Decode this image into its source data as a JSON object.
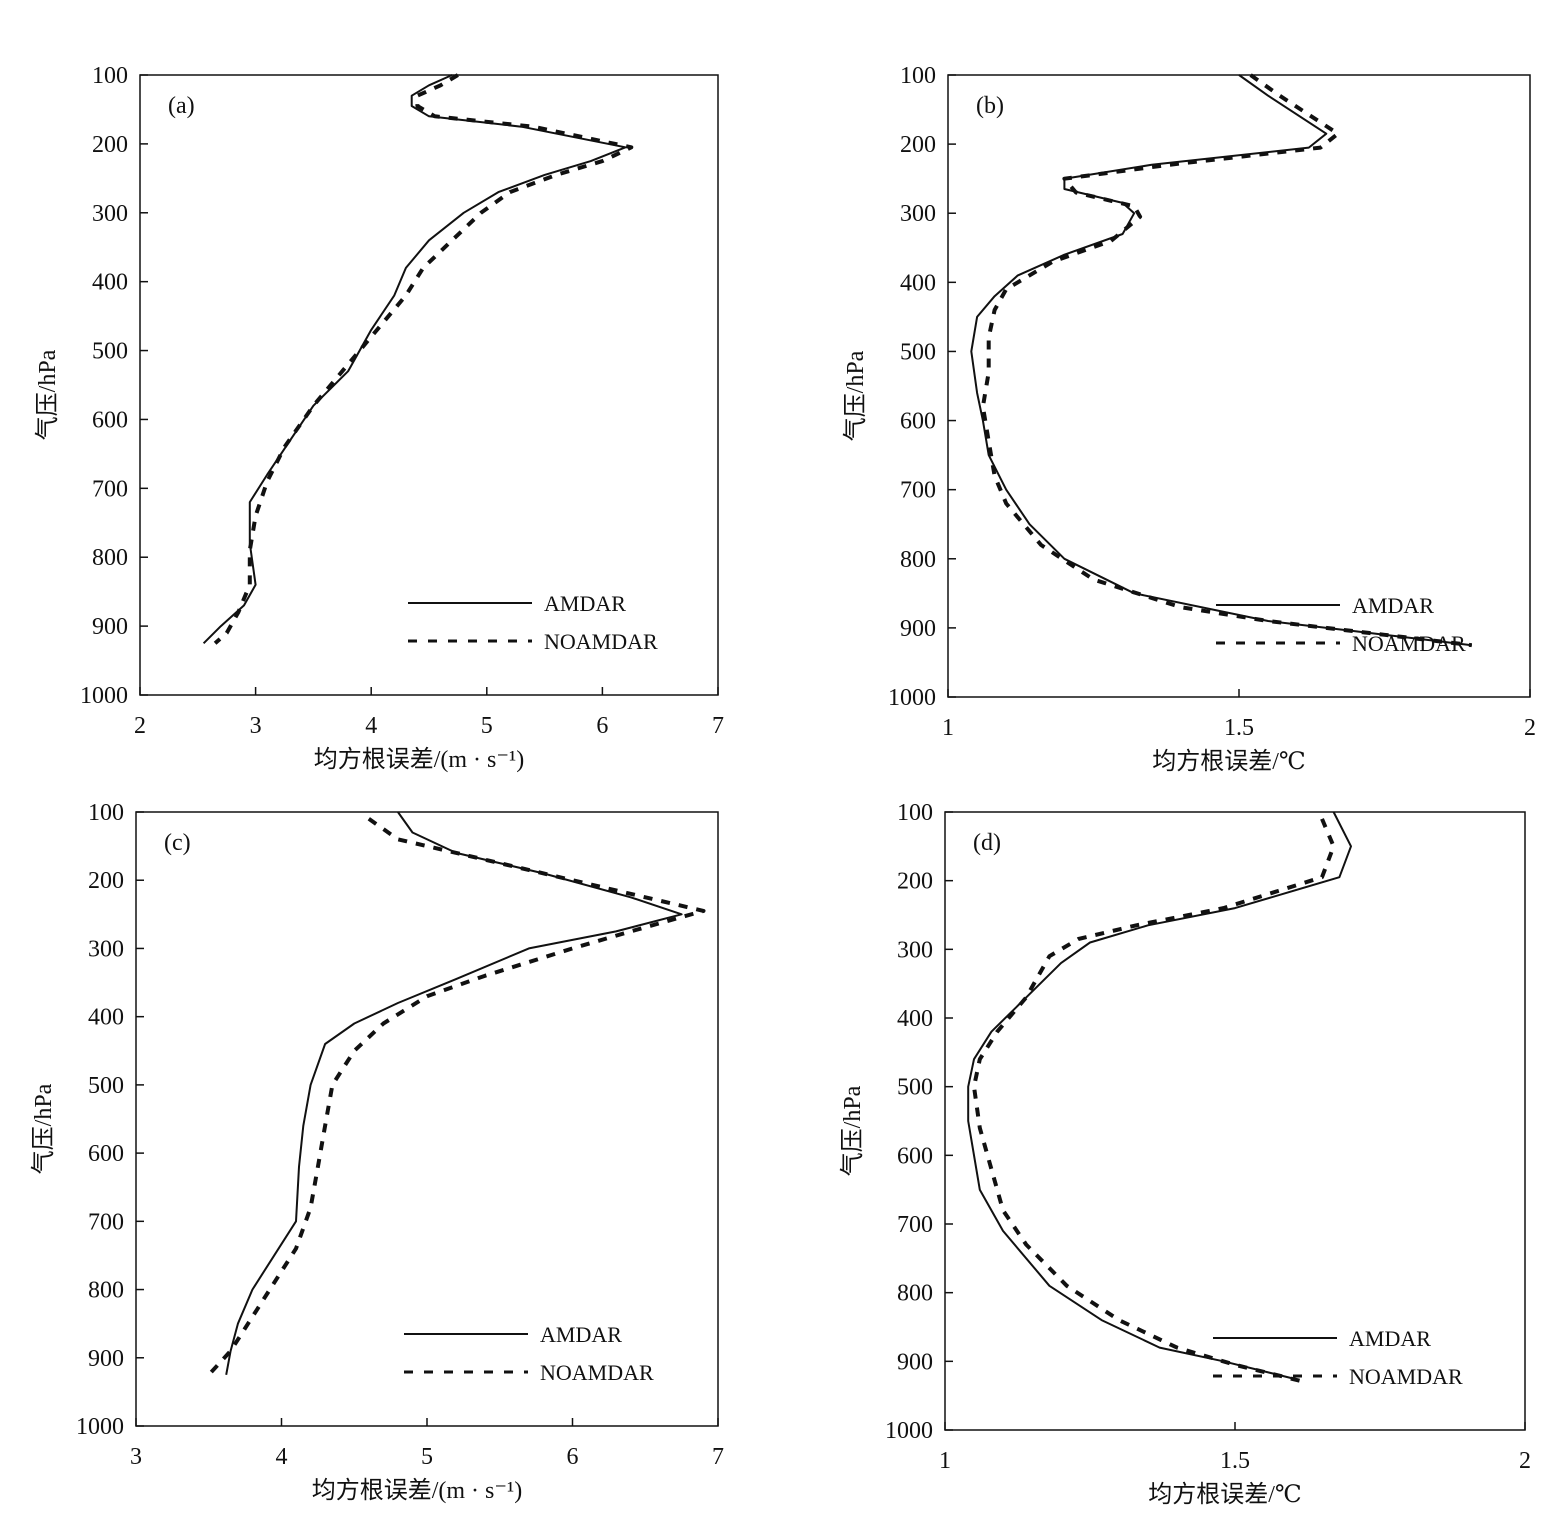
{
  "chart_data": [
    {
      "type": "line",
      "panel_label": "(a)",
      "xlabel": "均方根误差/(m · s⁻¹)",
      "ylabel": "气压/hPa",
      "xlim": [
        2,
        7
      ],
      "ylim": [
        1000,
        100
      ],
      "x_ticks": [
        "2",
        "3",
        "4",
        "5",
        "6",
        "7"
      ],
      "y_ticks": [
        "100",
        "200",
        "300",
        "400",
        "500",
        "600",
        "700",
        "800",
        "900",
        "1000"
      ],
      "legend": [
        "AMDAR",
        "NOAMDAR"
      ],
      "series": [
        {
          "name": "AMDAR",
          "style": "solid",
          "points": [
            [
              4.7,
              100
            ],
            [
              4.5,
              115
            ],
            [
              4.35,
              130
            ],
            [
              4.35,
              145
            ],
            [
              4.5,
              160
            ],
            [
              5.3,
              175
            ],
            [
              6.2,
              205
            ],
            [
              5.9,
              225
            ],
            [
              5.5,
              245
            ],
            [
              5.1,
              270
            ],
            [
              4.8,
              300
            ],
            [
              4.5,
              340
            ],
            [
              4.3,
              380
            ],
            [
              4.2,
              420
            ],
            [
              4.0,
              470
            ],
            [
              3.8,
              530
            ],
            [
              3.5,
              580
            ],
            [
              3.3,
              630
            ],
            [
              3.1,
              680
            ],
            [
              2.95,
              720
            ],
            [
              2.95,
              780
            ],
            [
              3.0,
              840
            ],
            [
              2.9,
              870
            ],
            [
              2.7,
              900
            ],
            [
              2.55,
              925
            ]
          ]
        },
        {
          "name": "NOAMDAR",
          "style": "dashed",
          "points": [
            [
              4.75,
              100
            ],
            [
              4.6,
              115
            ],
            [
              4.4,
              130
            ],
            [
              4.4,
              145
            ],
            [
              4.55,
              160
            ],
            [
              5.4,
              175
            ],
            [
              6.25,
              205
            ],
            [
              6.0,
              225
            ],
            [
              5.6,
              245
            ],
            [
              5.2,
              270
            ],
            [
              4.95,
              300
            ],
            [
              4.7,
              340
            ],
            [
              4.45,
              380
            ],
            [
              4.3,
              420
            ],
            [
              4.0,
              480
            ],
            [
              3.75,
              530
            ],
            [
              3.5,
              580
            ],
            [
              3.25,
              640
            ],
            [
              3.1,
              690
            ],
            [
              3.0,
              740
            ],
            [
              2.95,
              790
            ],
            [
              2.95,
              840
            ],
            [
              2.85,
              880
            ],
            [
              2.75,
              910
            ],
            [
              2.65,
              925
            ]
          ]
        }
      ]
    },
    {
      "type": "line",
      "panel_label": "(b)",
      "xlabel": "均方根误差/℃",
      "ylabel": "气压/hPa",
      "xlim": [
        1,
        2
      ],
      "ylim": [
        1000,
        100
      ],
      "x_ticks": [
        "1",
        "1.5",
        "2"
      ],
      "y_ticks": [
        "100",
        "200",
        "300",
        "400",
        "500",
        "600",
        "700",
        "800",
        "900",
        "1000"
      ],
      "legend": [
        "AMDAR",
        "NOAMDAR"
      ],
      "series": [
        {
          "name": "AMDAR",
          "style": "solid",
          "points": [
            [
              1.5,
              100
            ],
            [
              1.55,
              130
            ],
            [
              1.65,
              185
            ],
            [
              1.62,
              205
            ],
            [
              1.35,
              230
            ],
            [
              1.2,
              250
            ],
            [
              1.2,
              265
            ],
            [
              1.3,
              285
            ],
            [
              1.32,
              300
            ],
            [
              1.3,
              330
            ],
            [
              1.2,
              360
            ],
            [
              1.12,
              390
            ],
            [
              1.08,
              420
            ],
            [
              1.05,
              450
            ],
            [
              1.04,
              500
            ],
            [
              1.05,
              560
            ],
            [
              1.06,
              600
            ],
            [
              1.07,
              650
            ],
            [
              1.1,
              700
            ],
            [
              1.14,
              750
            ],
            [
              1.2,
              800
            ],
            [
              1.32,
              850
            ],
            [
              1.55,
              890
            ],
            [
              1.7,
              905
            ],
            [
              1.9,
              925
            ]
          ]
        },
        {
          "name": "NOAMDAR",
          "style": "dashed",
          "points": [
            [
              1.52,
              100
            ],
            [
              1.57,
              130
            ],
            [
              1.67,
              185
            ],
            [
              1.64,
              205
            ],
            [
              1.38,
              230
            ],
            [
              1.2,
              250
            ],
            [
              1.22,
              270
            ],
            [
              1.32,
              290
            ],
            [
              1.33,
              305
            ],
            [
              1.28,
              340
            ],
            [
              1.18,
              370
            ],
            [
              1.1,
              410
            ],
            [
              1.08,
              440
            ],
            [
              1.07,
              480
            ],
            [
              1.07,
              530
            ],
            [
              1.06,
              580
            ],
            [
              1.07,
              630
            ],
            [
              1.08,
              680
            ],
            [
              1.1,
              720
            ],
            [
              1.16,
              780
            ],
            [
              1.25,
              830
            ],
            [
              1.4,
              870
            ],
            [
              1.55,
              890
            ],
            [
              1.75,
              910
            ],
            [
              1.9,
              925
            ]
          ]
        }
      ]
    },
    {
      "type": "line",
      "panel_label": "(c)",
      "xlabel": "均方根误差/(m · s⁻¹)",
      "ylabel": "气压/hPa",
      "xlim": [
        3,
        7
      ],
      "ylim": [
        1000,
        100
      ],
      "x_ticks": [
        "3",
        "4",
        "5",
        "6",
        "7"
      ],
      "y_ticks": [
        "100",
        "200",
        "300",
        "400",
        "500",
        "600",
        "700",
        "800",
        "900",
        "1000"
      ],
      "legend": [
        "AMDAR",
        "NOAMDAR"
      ],
      "series": [
        {
          "name": "AMDAR",
          "style": "solid",
          "points": [
            [
              4.8,
              100
            ],
            [
              4.9,
              130
            ],
            [
              5.2,
              160
            ],
            [
              5.8,
              190
            ],
            [
              6.4,
              225
            ],
            [
              6.75,
              250
            ],
            [
              6.3,
              275
            ],
            [
              5.7,
              300
            ],
            [
              5.2,
              345
            ],
            [
              4.8,
              380
            ],
            [
              4.5,
              410
            ],
            [
              4.3,
              440
            ],
            [
              4.2,
              500
            ],
            [
              4.15,
              560
            ],
            [
              4.12,
              620
            ],
            [
              4.1,
              700
            ],
            [
              3.95,
              750
            ],
            [
              3.8,
              800
            ],
            [
              3.7,
              850
            ],
            [
              3.65,
              890
            ],
            [
              3.62,
              925
            ]
          ]
        },
        {
          "name": "NOAMDAR",
          "style": "dashed",
          "points": [
            [
              4.6,
              110
            ],
            [
              4.8,
              140
            ],
            [
              5.3,
              165
            ],
            [
              5.9,
              195
            ],
            [
              6.5,
              225
            ],
            [
              6.9,
              245
            ],
            [
              6.4,
              275
            ],
            [
              6.0,
              300
            ],
            [
              5.4,
              340
            ],
            [
              5.0,
              370
            ],
            [
              4.7,
              410
            ],
            [
              4.5,
              450
            ],
            [
              4.35,
              500
            ],
            [
              4.3,
              560
            ],
            [
              4.25,
              620
            ],
            [
              4.2,
              680
            ],
            [
              4.1,
              740
            ],
            [
              3.95,
              790
            ],
            [
              3.8,
              840
            ],
            [
              3.65,
              890
            ],
            [
              3.5,
              925
            ]
          ]
        }
      ]
    },
    {
      "type": "line",
      "panel_label": "(d)",
      "xlabel": "均方根误差/℃",
      "ylabel": "气压/hPa",
      "xlim": [
        1,
        2
      ],
      "ylim": [
        1000,
        100
      ],
      "x_ticks": [
        "1",
        "1.5",
        "2"
      ],
      "y_ticks": [
        "100",
        "200",
        "300",
        "400",
        "500",
        "600",
        "700",
        "800",
        "900",
        "1000"
      ],
      "legend": [
        "AMDAR",
        "NOAMDAR"
      ],
      "series": [
        {
          "name": "AMDAR",
          "style": "solid",
          "points": [
            [
              1.67,
              100
            ],
            [
              1.7,
              150
            ],
            [
              1.68,
              195
            ],
            [
              1.5,
              240
            ],
            [
              1.35,
              265
            ],
            [
              1.25,
              290
            ],
            [
              1.2,
              320
            ],
            [
              1.14,
              370
            ],
            [
              1.08,
              420
            ],
            [
              1.05,
              460
            ],
            [
              1.04,
              500
            ],
            [
              1.04,
              550
            ],
            [
              1.05,
              600
            ],
            [
              1.06,
              650
            ],
            [
              1.1,
              710
            ],
            [
              1.18,
              790
            ],
            [
              1.27,
              840
            ],
            [
              1.37,
              880
            ],
            [
              1.48,
              900
            ],
            [
              1.6,
              925
            ]
          ]
        },
        {
          "name": "NOAMDAR",
          "style": "dashed",
          "points": [
            [
              1.65,
              110
            ],
            [
              1.67,
              150
            ],
            [
              1.65,
              195
            ],
            [
              1.48,
              240
            ],
            [
              1.33,
              265
            ],
            [
              1.23,
              285
            ],
            [
              1.18,
              310
            ],
            [
              1.14,
              370
            ],
            [
              1.09,
              420
            ],
            [
              1.06,
              460
            ],
            [
              1.05,
              500
            ],
            [
              1.06,
              560
            ],
            [
              1.08,
              620
            ],
            [
              1.1,
              680
            ],
            [
              1.14,
              730
            ],
            [
              1.21,
              790
            ],
            [
              1.3,
              840
            ],
            [
              1.4,
              880
            ],
            [
              1.5,
              905
            ],
            [
              1.62,
              930
            ]
          ]
        }
      ]
    }
  ]
}
